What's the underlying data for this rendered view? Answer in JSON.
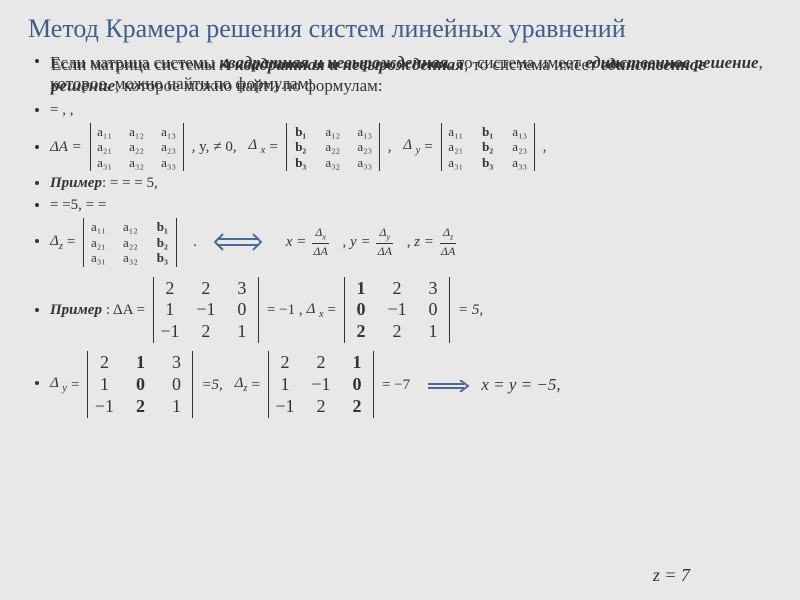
{
  "title": "Метод Крамера решения систем линейных уравнений",
  "overlap_line1": "Если матрица системы квадратная и невырожденная, то система имеет единственное решение, которое, можно найти по формулам:",
  "overlap_line2": "Если матрица системы А квадратная и невырожденная, то система имеет единственное решение, которое можно найти по формулам:",
  "bullet_eqsign": " = ,  ,",
  "label_deltaA": "ΔA =",
  "neq_zero": "≠ 0,",
  "comma_y": ", y,",
  "label_deltaX": "Δ ",
  "sub_x": "x",
  "eq_sign": "=",
  "comma": ",",
  "label_deltaY": "Δ ",
  "sub_y": "y",
  "primer": "Пример",
  "primer_tail1": ":  = =  = 5,",
  "primer_tail2": ": ΔA =",
  "line_eq5": " = =5, = =",
  "label_deltaZ": "Δ",
  "sub_z": "z",
  "dot": ".",
  "formula_x": "x =",
  "formula_y": ", y =",
  "formula_z": ", z =",
  "frac_dx": "Δₓ",
  "frac_dy": "Δᵧ",
  "frac_dz": "Δ_z",
  "frac_da": "ΔA",
  "val_m1": "= −1 ,",
  "val_5": "= 5,",
  "val_5b": "=5,",
  "val_m7": " = −7",
  "sol_xy": "x = y = −5,",
  "sol_z": "z = 7",
  "matrices": {
    "A_generic": [
      [
        "a₁₁",
        "a₁₂",
        "a₁₃"
      ],
      [
        "a₂₁",
        "a₂₂",
        "a₂₃"
      ],
      [
        "a₃₁",
        "a₃₂",
        "a₃₃"
      ]
    ],
    "X_generic": [
      [
        "b₁",
        "a₁₂",
        "a₁₃"
      ],
      [
        "b₂",
        "a₂₂",
        "a₂₃"
      ],
      [
        "b₃",
        "a₃₂",
        "a₃₃"
      ]
    ],
    "Y_generic": [
      [
        "a₁₁",
        "b₁",
        "a₁₃"
      ],
      [
        "a₂₁",
        "b₂",
        "a₂₃"
      ],
      [
        "a₃₁",
        "b₃",
        "a₃₃"
      ]
    ],
    "Z_generic": [
      [
        "a₁₁",
        "a₁₂",
        "b₁"
      ],
      [
        "a₂₁",
        "a₂₂",
        "b₂"
      ],
      [
        "a₃₁",
        "a₃₂",
        "b₃"
      ]
    ],
    "A_num": [
      [
        "2",
        "2",
        "3"
      ],
      [
        "1",
        "−1",
        "0"
      ],
      [
        "−1",
        "2",
        "1"
      ]
    ],
    "X_num": [
      [
        "1",
        "2",
        "3"
      ],
      [
        "0",
        "−1",
        "0"
      ],
      [
        "2",
        "2",
        "1"
      ]
    ],
    "Y_num": [
      [
        "2",
        "1",
        "3"
      ],
      [
        "1",
        "0",
        "0"
      ],
      [
        "−1",
        "2",
        "1"
      ]
    ],
    "Z_num": [
      [
        "2",
        "2",
        "1"
      ],
      [
        "1",
        "−1",
        "0"
      ],
      [
        "−1",
        "2",
        "2"
      ]
    ],
    "bold_cols": {
      "X_generic": 0,
      "Y_generic": 1,
      "Z_generic": 2,
      "X_num": 0,
      "Y_num": 1,
      "Z_num": 2
    }
  },
  "colors": {
    "title": "#3c5f8a",
    "text": "#333333",
    "arrow_stroke": "#4a6a9a",
    "background": "#e8e8e8"
  },
  "fonts": {
    "title_size": 26,
    "body_size": 15,
    "matrix_small": 13,
    "matrix_big": 18
  }
}
